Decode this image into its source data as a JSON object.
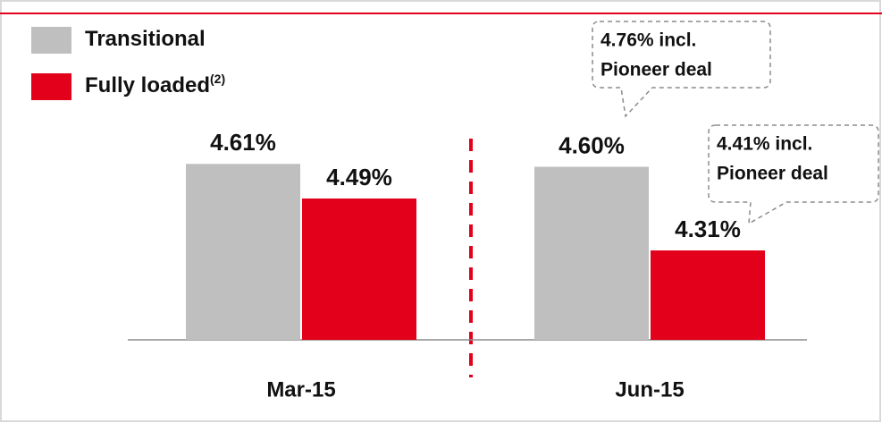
{
  "chart_data": {
    "type": "bar",
    "categories": [
      "Mar-15",
      "Jun-15"
    ],
    "series": [
      {
        "name": "Transitional",
        "color": "#bfbfbf",
        "values": [
          4.61,
          4.6
        ],
        "value_labels": [
          "4.61%",
          "4.60%"
        ]
      },
      {
        "name": "Fully loaded",
        "name_note": "(2)",
        "color": "#e2001a",
        "values": [
          4.49,
          4.31
        ],
        "value_labels": [
          "4.49%",
          "4.31%"
        ]
      }
    ],
    "ylim": [
      4.0,
      4.8
    ],
    "annotations": [
      {
        "lines": [
          "4.76% incl.",
          "Pioneer deal"
        ]
      },
      {
        "lines": [
          "4.41% incl.",
          "Pioneer deal"
        ]
      }
    ]
  }
}
